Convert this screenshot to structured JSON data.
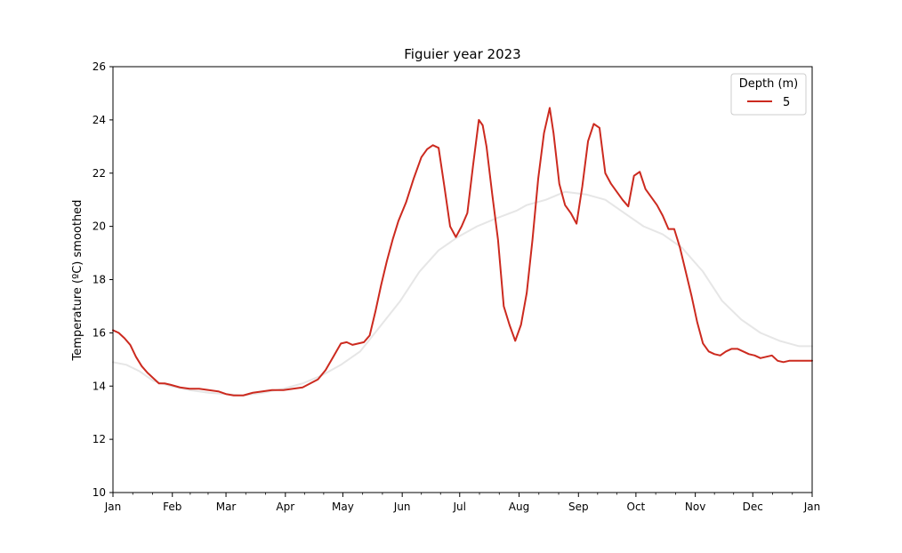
{
  "chart_data": {
    "type": "line",
    "title": "Figuier year 2023",
    "xlabel": "",
    "ylabel": "Temperature (ºC) smoothed",
    "ylim": [
      10,
      26
    ],
    "yticks": [
      10,
      12,
      14,
      16,
      18,
      20,
      22,
      24,
      26
    ],
    "xlim": [
      "2023-01-01",
      "2024-01-01"
    ],
    "xticks": [
      {
        "date": "2023-01-01",
        "label": "Jan"
      },
      {
        "date": "2023-02-01",
        "label": "Feb"
      },
      {
        "date": "2023-03-01",
        "label": "Mar"
      },
      {
        "date": "2023-04-01",
        "label": "Apr"
      },
      {
        "date": "2023-05-01",
        "label": "May"
      },
      {
        "date": "2023-06-01",
        "label": "Jun"
      },
      {
        "date": "2023-07-01",
        "label": "Jul"
      },
      {
        "date": "2023-08-01",
        "label": "Aug"
      },
      {
        "date": "2023-09-01",
        "label": "Sep"
      },
      {
        "date": "2023-10-01",
        "label": "Oct"
      },
      {
        "date": "2023-11-01",
        "label": "Nov"
      },
      {
        "date": "2023-12-01",
        "label": "Dec"
      },
      {
        "date": "2024-01-01",
        "label": "Jan"
      }
    ],
    "grid": false,
    "legend": {
      "title": "Depth (m)",
      "placement": "top-right"
    },
    "series": [
      {
        "name": "5",
        "color": "#cc2a1f",
        "points": [
          [
            "2023-01-01",
            16.1
          ],
          [
            "2023-01-04",
            16.0
          ],
          [
            "2023-01-07",
            15.8
          ],
          [
            "2023-01-10",
            15.55
          ],
          [
            "2023-01-13",
            15.1
          ],
          [
            "2023-01-16",
            14.75
          ],
          [
            "2023-01-19",
            14.5
          ],
          [
            "2023-01-22",
            14.3
          ],
          [
            "2023-01-25",
            14.1
          ],
          [
            "2023-01-28",
            14.1
          ],
          [
            "2023-01-31",
            14.05
          ],
          [
            "2023-02-05",
            13.95
          ],
          [
            "2023-02-10",
            13.9
          ],
          [
            "2023-02-15",
            13.9
          ],
          [
            "2023-02-20",
            13.85
          ],
          [
            "2023-02-25",
            13.8
          ],
          [
            "2023-03-01",
            13.7
          ],
          [
            "2023-03-05",
            13.65
          ],
          [
            "2023-03-10",
            13.65
          ],
          [
            "2023-03-15",
            13.75
          ],
          [
            "2023-03-20",
            13.8
          ],
          [
            "2023-03-25",
            13.85
          ],
          [
            "2023-03-31",
            13.85
          ],
          [
            "2023-04-05",
            13.9
          ],
          [
            "2023-04-10",
            13.95
          ],
          [
            "2023-04-14",
            14.1
          ],
          [
            "2023-04-18",
            14.25
          ],
          [
            "2023-04-22",
            14.6
          ],
          [
            "2023-04-26",
            15.1
          ],
          [
            "2023-04-30",
            15.6
          ],
          [
            "2023-05-03",
            15.65
          ],
          [
            "2023-05-06",
            15.55
          ],
          [
            "2023-05-09",
            15.6
          ],
          [
            "2023-05-12",
            15.65
          ],
          [
            "2023-05-15",
            15.9
          ],
          [
            "2023-05-18",
            16.8
          ],
          [
            "2023-05-21",
            17.8
          ],
          [
            "2023-05-24",
            18.7
          ],
          [
            "2023-05-27",
            19.5
          ],
          [
            "2023-05-30",
            20.2
          ],
          [
            "2023-06-03",
            20.9
          ],
          [
            "2023-06-07",
            21.8
          ],
          [
            "2023-06-11",
            22.6
          ],
          [
            "2023-06-14",
            22.9
          ],
          [
            "2023-06-17",
            23.05
          ],
          [
            "2023-06-20",
            22.95
          ],
          [
            "2023-06-23",
            21.5
          ],
          [
            "2023-06-26",
            20.0
          ],
          [
            "2023-06-29",
            19.6
          ],
          [
            "2023-07-02",
            20.0
          ],
          [
            "2023-07-05",
            20.5
          ],
          [
            "2023-07-08",
            22.3
          ],
          [
            "2023-07-11",
            24.0
          ],
          [
            "2023-07-13",
            23.8
          ],
          [
            "2023-07-15",
            23.0
          ],
          [
            "2023-07-18",
            21.2
          ],
          [
            "2023-07-21",
            19.5
          ],
          [
            "2023-07-24",
            17.0
          ],
          [
            "2023-07-27",
            16.3
          ],
          [
            "2023-07-30",
            15.7
          ],
          [
            "2023-08-02",
            16.3
          ],
          [
            "2023-08-05",
            17.5
          ],
          [
            "2023-08-08",
            19.5
          ],
          [
            "2023-08-11",
            21.8
          ],
          [
            "2023-08-14",
            23.5
          ],
          [
            "2023-08-17",
            24.45
          ],
          [
            "2023-08-19",
            23.5
          ],
          [
            "2023-08-22",
            21.6
          ],
          [
            "2023-08-25",
            20.8
          ],
          [
            "2023-08-28",
            20.5
          ],
          [
            "2023-08-31",
            20.1
          ],
          [
            "2023-09-03",
            21.5
          ],
          [
            "2023-09-06",
            23.2
          ],
          [
            "2023-09-09",
            23.85
          ],
          [
            "2023-09-12",
            23.7
          ],
          [
            "2023-09-15",
            22.0
          ],
          [
            "2023-09-18",
            21.6
          ],
          [
            "2023-09-21",
            21.3
          ],
          [
            "2023-09-24",
            21.0
          ],
          [
            "2023-09-27",
            20.75
          ],
          [
            "2023-09-30",
            21.9
          ],
          [
            "2023-10-03",
            22.05
          ],
          [
            "2023-10-06",
            21.4
          ],
          [
            "2023-10-09",
            21.1
          ],
          [
            "2023-10-12",
            20.8
          ],
          [
            "2023-10-15",
            20.4
          ],
          [
            "2023-10-18",
            19.9
          ],
          [
            "2023-10-21",
            19.9
          ],
          [
            "2023-10-24",
            19.2
          ],
          [
            "2023-10-27",
            18.3
          ],
          [
            "2023-10-30",
            17.4
          ],
          [
            "2023-11-02",
            16.4
          ],
          [
            "2023-11-05",
            15.6
          ],
          [
            "2023-11-08",
            15.3
          ],
          [
            "2023-11-11",
            15.2
          ],
          [
            "2023-11-14",
            15.15
          ],
          [
            "2023-11-17",
            15.3
          ],
          [
            "2023-11-20",
            15.4
          ],
          [
            "2023-11-23",
            15.4
          ],
          [
            "2023-11-26",
            15.3
          ],
          [
            "2023-11-29",
            15.2
          ],
          [
            "2023-12-02",
            15.15
          ],
          [
            "2023-12-05",
            15.05
          ],
          [
            "2023-12-08",
            15.1
          ],
          [
            "2023-12-11",
            15.15
          ],
          [
            "2023-12-14",
            14.95
          ],
          [
            "2023-12-17",
            14.9
          ],
          [
            "2023-12-20",
            14.95
          ],
          [
            "2023-12-23",
            14.95
          ],
          [
            "2023-12-27",
            14.95
          ],
          [
            "2024-01-01",
            14.95
          ]
        ]
      },
      {
        "name": "",
        "color": "#e6e6e6",
        "legend": false,
        "points": [
          [
            "2023-01-01",
            14.9
          ],
          [
            "2023-01-08",
            14.8
          ],
          [
            "2023-01-15",
            14.55
          ],
          [
            "2023-01-22",
            14.2
          ],
          [
            "2023-01-31",
            14.0
          ],
          [
            "2023-02-10",
            13.85
          ],
          [
            "2023-02-20",
            13.75
          ],
          [
            "2023-03-01",
            13.7
          ],
          [
            "2023-03-10",
            13.65
          ],
          [
            "2023-03-20",
            13.75
          ],
          [
            "2023-03-31",
            13.9
          ],
          [
            "2023-04-10",
            14.1
          ],
          [
            "2023-04-20",
            14.4
          ],
          [
            "2023-04-30",
            14.8
          ],
          [
            "2023-05-10",
            15.3
          ],
          [
            "2023-05-20",
            16.2
          ],
          [
            "2023-05-31",
            17.2
          ],
          [
            "2023-06-10",
            18.3
          ],
          [
            "2023-06-20",
            19.1
          ],
          [
            "2023-06-30",
            19.6
          ],
          [
            "2023-07-10",
            20.0
          ],
          [
            "2023-07-20",
            20.3
          ],
          [
            "2023-07-31",
            20.6
          ],
          [
            "2023-08-05",
            20.8
          ],
          [
            "2023-08-15",
            21.0
          ],
          [
            "2023-08-25",
            21.3
          ],
          [
            "2023-09-05",
            21.2
          ],
          [
            "2023-09-15",
            21.0
          ],
          [
            "2023-09-25",
            20.5
          ],
          [
            "2023-10-05",
            20.0
          ],
          [
            "2023-10-15",
            19.7
          ],
          [
            "2023-10-25",
            19.2
          ],
          [
            "2023-11-05",
            18.3
          ],
          [
            "2023-11-15",
            17.2
          ],
          [
            "2023-11-25",
            16.5
          ],
          [
            "2023-12-05",
            16.0
          ],
          [
            "2023-12-15",
            15.7
          ],
          [
            "2023-12-25",
            15.5
          ],
          [
            "2024-01-01",
            15.5
          ]
        ]
      }
    ]
  }
}
